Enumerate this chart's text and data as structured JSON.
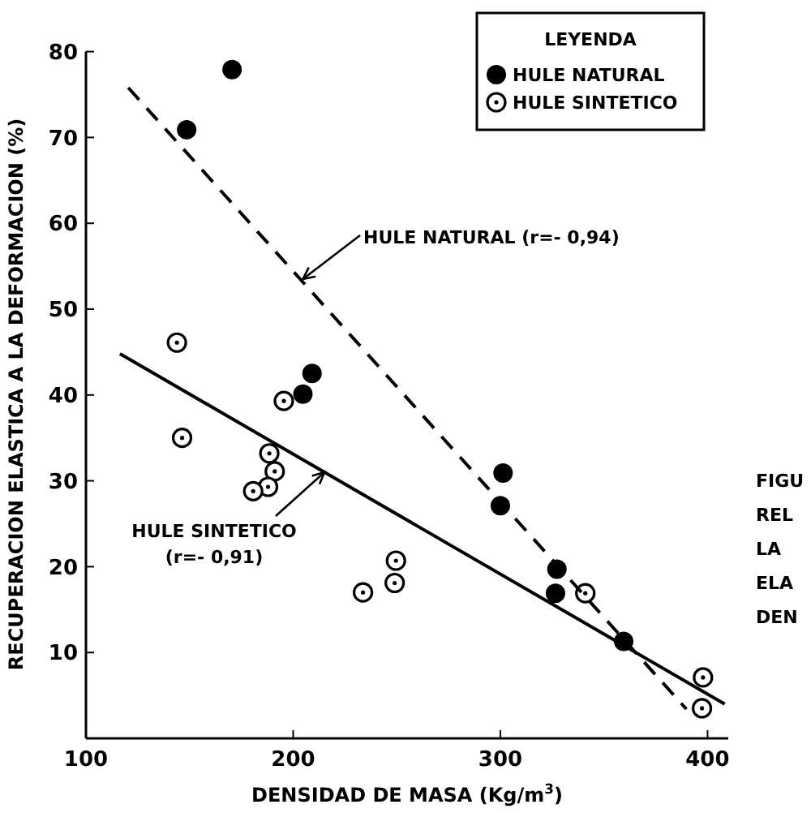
{
  "chart_data": {
    "type": "scatter",
    "xlabel": "DENSIDAD DE MASA (Kg/m$^{3}$)",
    "ylabel": "RECUPERACION ELASTICA A LA DEFORMACION (%)",
    "legend_title": "LEYENDA",
    "legend": "top right",
    "marker": "circle",
    "grid": false,
    "xlim": [
      100,
      410
    ],
    "ylim": [
      0,
      80
    ],
    "xticks": [
      100,
      200,
      300,
      400
    ],
    "yticks": [
      {
        "value": 0,
        "label": null
      },
      10,
      20,
      30,
      40,
      50,
      60,
      70,
      80
    ],
    "series": [
      {
        "name": "HULE NATURAL",
        "color": "#000000",
        "x": [
          170.5,
          148.6,
          209.1,
          204.7,
          301.3,
          300,
          327.3,
          326.6,
          359.5
        ],
        "values": [
          77.9,
          70.9,
          42.5,
          40.1,
          30.9,
          27.1,
          19.7,
          16.9,
          11.3
        ]
      },
      {
        "name": "HULE SINTETICO",
        "color": "#000000",
        "x": [
          143.9,
          195.5,
          146.4,
          188.5,
          191.1,
          187.9,
          180.7,
          249.6,
          249,
          233.7,
          341,
          397.8,
          397.3
        ],
        "values": [
          46.1,
          39.3,
          35.0,
          33.2,
          31.1,
          29.3,
          28.8,
          20.7,
          18.1,
          17.0,
          16.9,
          7.1,
          3.5
        ]
      },
      {
        "type": "line",
        "color": "#000000",
        "line_style": "dashed",
        "x": [
          120.4,
          389.8
        ],
        "values": [
          75.8,
          3.4
        ],
        "marker": "none"
      },
      {
        "type": "line",
        "color": "#000000",
        "line_style": "solid",
        "x": [
          116.4,
          408.3
        ],
        "values": [
          44.8,
          4.0
        ],
        "marker": "none"
      }
    ],
    "annotations": [
      {
        "text": "HULE NATURAL (r=- 0,94)",
        "x": 204.7,
        "y": 53.5
      },
      {
        "text": "HULE SINTETICO\n(r=- 0,91)",
        "x": 215.1,
        "y": 31.0
      },
      "FIGU\nREL\nLA\nELA\nDEN"
    ]
  }
}
